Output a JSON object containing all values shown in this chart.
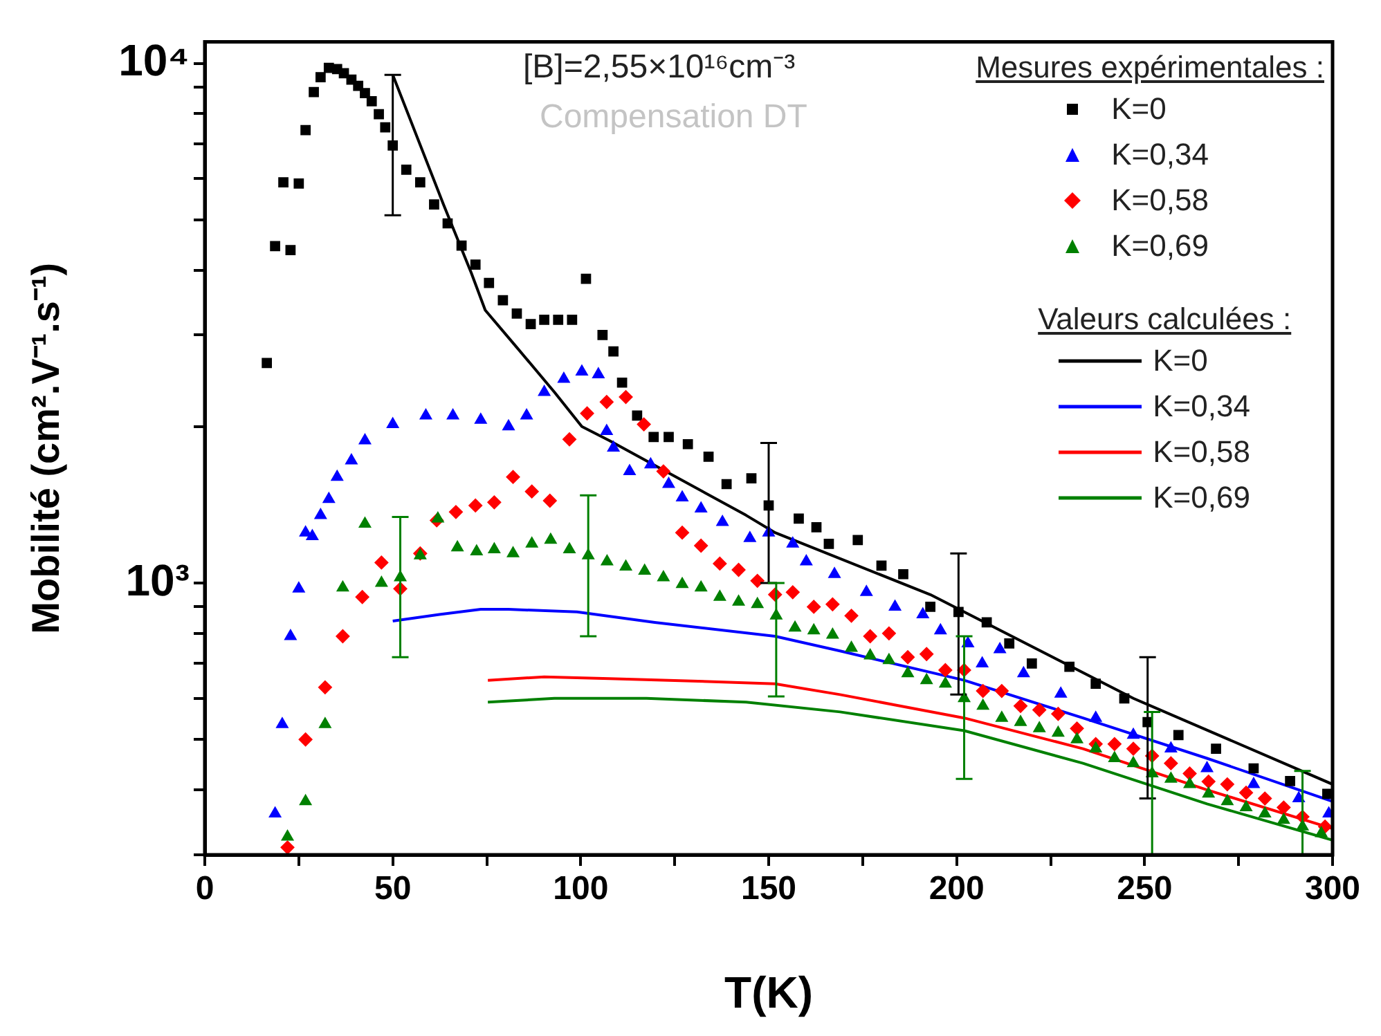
{
  "chart_data": {
    "type": "scatter",
    "xlabel": "T(K)",
    "ylabel": "Mobilité (cm².V⁻¹.s⁻¹)",
    "legend_title": "Mesures expérimentales :",
    "legend": "top right",
    "grid": false,
    "log": "y",
    "annotations": [
      "[B]=2,55×10¹⁶cm⁻³",
      "Compensation DT",
      "Valeurs calculées :"
    ],
    "xlim": [
      0,
      300
    ],
    "xticks": [
      0,
      {
        "value": 25,
        "label": null
      },
      50,
      {
        "value": 75,
        "label": null
      },
      100,
      {
        "value": 125,
        "label": null
      },
      150,
      {
        "value": 175,
        "label": null
      },
      200,
      {
        "value": 225,
        "label": null
      },
      250,
      {
        "value": 275,
        "label": null
      },
      300
    ],
    "ylim": [
      300,
      11000
    ],
    "yticks": [
      {
        "value": 300,
        "label": null
      },
      {
        "value": 400,
        "label": null
      },
      {
        "value": 500,
        "label": null
      },
      {
        "value": 600,
        "label": null
      },
      {
        "value": 700,
        "label": null
      },
      {
        "value": 800,
        "label": null
      },
      {
        "value": 900,
        "label": null
      },
      {
        "value": 1000,
        "label": "10³"
      },
      {
        "value": 2000,
        "label": null
      },
      {
        "value": 3000,
        "label": null
      },
      {
        "value": 4000,
        "label": null
      },
      {
        "value": 5000,
        "label": null
      },
      {
        "value": 6000,
        "label": null
      },
      {
        "value": 7000,
        "label": null
      },
      {
        "value": 8000,
        "label": null
      },
      {
        "value": 9000,
        "label": null
      },
      {
        "value": 10000,
        "label": "10⁴"
      }
    ],
    "series": [
      {
        "name": "K=0",
        "type": "scatter",
        "marker": "square",
        "color": "#000000",
        "x": [
          16.5,
          18.7,
          20.9,
          22.8,
          25,
          26.8,
          29,
          30.8,
          33,
          35.2,
          37,
          39,
          40.8,
          42.6,
          44.4,
          46.3,
          48,
          50,
          53.6,
          57.3,
          61,
          64.6,
          68.3,
          72,
          75.6,
          79.3,
          83,
          86.7,
          90.3,
          94,
          97.7,
          101.4,
          105.8,
          108.7,
          111,
          115,
          119.4,
          123.4,
          128.5,
          134,
          138.8,
          145.4,
          150,
          158,
          162.7,
          166,
          173.7,
          180,
          185.8,
          193,
          200.5,
          208,
          214,
          220,
          230,
          237,
          244.6,
          250.8,
          259,
          269,
          279,
          288.7,
          298.6
        ],
        "values": [
          2650,
          4450,
          5900,
          4370,
          5870,
          7440,
          8800,
          9400,
          9800,
          9750,
          9570,
          9300,
          9050,
          8760,
          8450,
          7980,
          7530,
          6950,
          6240,
          5900,
          5350,
          4920,
          4460,
          4100,
          3780,
          3500,
          3300,
          3150,
          3210,
          3210,
          3210,
          3850,
          3000,
          2790,
          2430,
          2100,
          1910,
          1910,
          1850,
          1750,
          1550,
          1590,
          1410,
          1330,
          1280,
          1190,
          1210,
          1080,
          1040,
          900,
          880,
          840,
          765,
          700,
          690,
          640,
          600,
          540,
          510,
          480,
          440,
          416,
          393
        ],
        "errors": [
          null,
          null,
          null,
          null,
          null,
          null,
          null,
          null,
          null,
          null,
          null,
          null,
          null,
          null,
          null,
          null,
          null,
          [
            5100,
            9500
          ],
          null,
          null,
          null,
          null,
          null,
          null,
          null,
          null,
          null,
          null,
          null,
          null,
          null,
          null,
          null,
          null,
          null,
          null,
          null,
          null,
          null,
          null,
          null,
          null,
          [
            1000,
            1860
          ],
          null,
          null,
          null,
          null,
          null,
          null,
          null,
          [
            610,
            1140
          ],
          null,
          null,
          null,
          null,
          null,
          null,
          [
            385,
            720
          ],
          null,
          null,
          null,
          null,
          null
        ]
      },
      {
        "name": "K=0,34",
        "type": "scatter",
        "marker": "triangle",
        "color": "#0000ff",
        "x": [
          18.7,
          20.6,
          22.8,
          25,
          26.8,
          28.6,
          30.8,
          33,
          35.2,
          39,
          42.6,
          50,
          58.8,
          66,
          73.4,
          80.8,
          85.6,
          90.3,
          95.5,
          100.3,
          104.7,
          106.9,
          108.7,
          113,
          118.6,
          123.4,
          127,
          132,
          137.7,
          145,
          150,
          156.4,
          160,
          167.5,
          176,
          183.6,
          191,
          195.7,
          203,
          206.8,
          211.5,
          217.8,
          227.7,
          237,
          247,
          257,
          266.6,
          279,
          291,
          299
        ],
        "values": [
          360,
          535,
          790,
          975,
          1250,
          1230,
          1350,
          1450,
          1600,
          1720,
          1880,
          2020,
          2100,
          2100,
          2060,
          2000,
          2100,
          2330,
          2470,
          2550,
          2520,
          1960,
          1820,
          1640,
          1690,
          1550,
          1460,
          1390,
          1310,
          1220,
          1250,
          1190,
          1100,
          1040,
          960,
          900,
          870,
          810,
          765,
          700,
          745,
          670,
          612,
          550,
          510,
          480,
          440,
          410,
          385,
          360
        ]
      },
      {
        "name": "K=0,58",
        "type": "scatter",
        "marker": "diamond",
        "color": "#ff0000",
        "x": [
          22,
          26.8,
          32,
          36.7,
          41.9,
          47,
          52,
          57.3,
          61.7,
          66.8,
          72,
          77,
          82,
          87,
          91.8,
          97,
          101.7,
          106.9,
          112,
          116.8,
          122,
          127,
          132,
          137,
          142,
          147,
          151.7,
          156.4,
          162,
          167,
          172,
          177,
          182,
          187,
          192,
          197,
          202,
          207,
          212,
          217,
          222,
          227,
          232,
          237,
          242,
          247,
          252,
          257,
          262,
          267,
          272,
          277,
          282,
          287,
          292,
          298
        ],
        "values": [
          310,
          500,
          630,
          790,
          940,
          1095,
          975,
          1140,
          1320,
          1370,
          1410,
          1430,
          1600,
          1500,
          1440,
          1890,
          2120,
          2230,
          2280,
          2020,
          1640,
          1250,
          1180,
          1090,
          1060,
          1010,
          950,
          960,
          900,
          910,
          865,
          790,
          800,
          720,
          730,
          680,
          680,
          620,
          620,
          580,
          570,
          560,
          525,
          490,
          490,
          480,
          465,
          450,
          430,
          415,
          410,
          395,
          385,
          370,
          355,
          340
        ]
      },
      {
        "name": "K=0,69",
        "type": "scatter",
        "marker": "triangle",
        "color": "#008000",
        "x": [
          22,
          26.8,
          32,
          36.7,
          42.6,
          47,
          52,
          57.3,
          62,
          67.2,
          72.3,
          77,
          82,
          87,
          92,
          97,
          102,
          107,
          112,
          117,
          122,
          127,
          132,
          137,
          142,
          147,
          152,
          157,
          162,
          167,
          172,
          177,
          182,
          187,
          192,
          197,
          202,
          207,
          212,
          217,
          222,
          227,
          232,
          237,
          242,
          247,
          252,
          257,
          262,
          267,
          272,
          277,
          282,
          287,
          292,
          297
        ],
        "values": [
          325,
          380,
          535,
          980,
          1300,
          1000,
          1025,
          1130,
          1330,
          1170,
          1150,
          1160,
          1140,
          1190,
          1210,
          1160,
          1130,
          1100,
          1075,
          1055,
          1025,
          995,
          980,
          940,
          920,
          910,
          865,
          820,
          810,
          795,
          750,
          725,
          710,
          670,
          650,
          640,
          600,
          580,
          550,
          540,
          525,
          515,
          500,
          480,
          460,
          450,
          430,
          420,
          410,
          393,
          380,
          370,
          360,
          350,
          340,
          330
        ],
        "errors": [
          null,
          null,
          null,
          null,
          null,
          null,
          [
            720,
            1340
          ],
          null,
          null,
          null,
          null,
          null,
          null,
          null,
          null,
          null,
          [
            790,
            1475
          ],
          null,
          null,
          null,
          null,
          null,
          null,
          null,
          null,
          null,
          [
            605,
            1000
          ],
          null,
          null,
          null,
          null,
          null,
          null,
          null,
          null,
          null,
          [
            420,
            790
          ],
          null,
          null,
          null,
          null,
          null,
          null,
          null,
          null,
          null,
          [
            300,
            565
          ],
          null,
          null,
          null,
          null,
          null,
          null,
          null,
          [
            300,
            435
          ],
          null
        ]
      },
      {
        "name": "K=0",
        "type": "line",
        "color": "#000000",
        "x": [
          50,
          63.5,
          70.9,
          74.6,
          83,
          93,
          100.3,
          107.6,
          144,
          151.7,
          193,
          247,
          300
        ],
        "values": [
          9500,
          5350,
          3950,
          3350,
          2840,
          2330,
          2000,
          1880,
          1350,
          1250,
          950,
          600,
          410
        ]
      },
      {
        "name": "K=0,34",
        "type": "line",
        "color": "#0000ff",
        "x": [
          50,
          62.4,
          73.4,
          80.8,
          99,
          119.7,
          151.7,
          169,
          202,
          233.6,
          266.6,
          300
        ],
        "values": [
          845,
          870,
          890,
          890,
          880,
          840,
          790,
          740,
          650,
          550,
          460,
          380
        ]
      },
      {
        "name": "K=0,58",
        "type": "line",
        "color": "#ff0000",
        "x": [
          75.3,
          90.3,
          107.6,
          123.4,
          151.7,
          169,
          202,
          233.6,
          266.6,
          300
        ],
        "values": [
          650,
          660,
          655,
          650,
          640,
          610,
          550,
          480,
          400,
          337
        ]
      },
      {
        "name": "K=0,69",
        "type": "line",
        "color": "#008000",
        "x": [
          75.3,
          93,
          117.5,
          144,
          169,
          202,
          233.6,
          266.6,
          300
        ],
        "values": [
          590,
          600,
          600,
          590,
          565,
          520,
          450,
          376,
          320
        ]
      }
    ]
  }
}
